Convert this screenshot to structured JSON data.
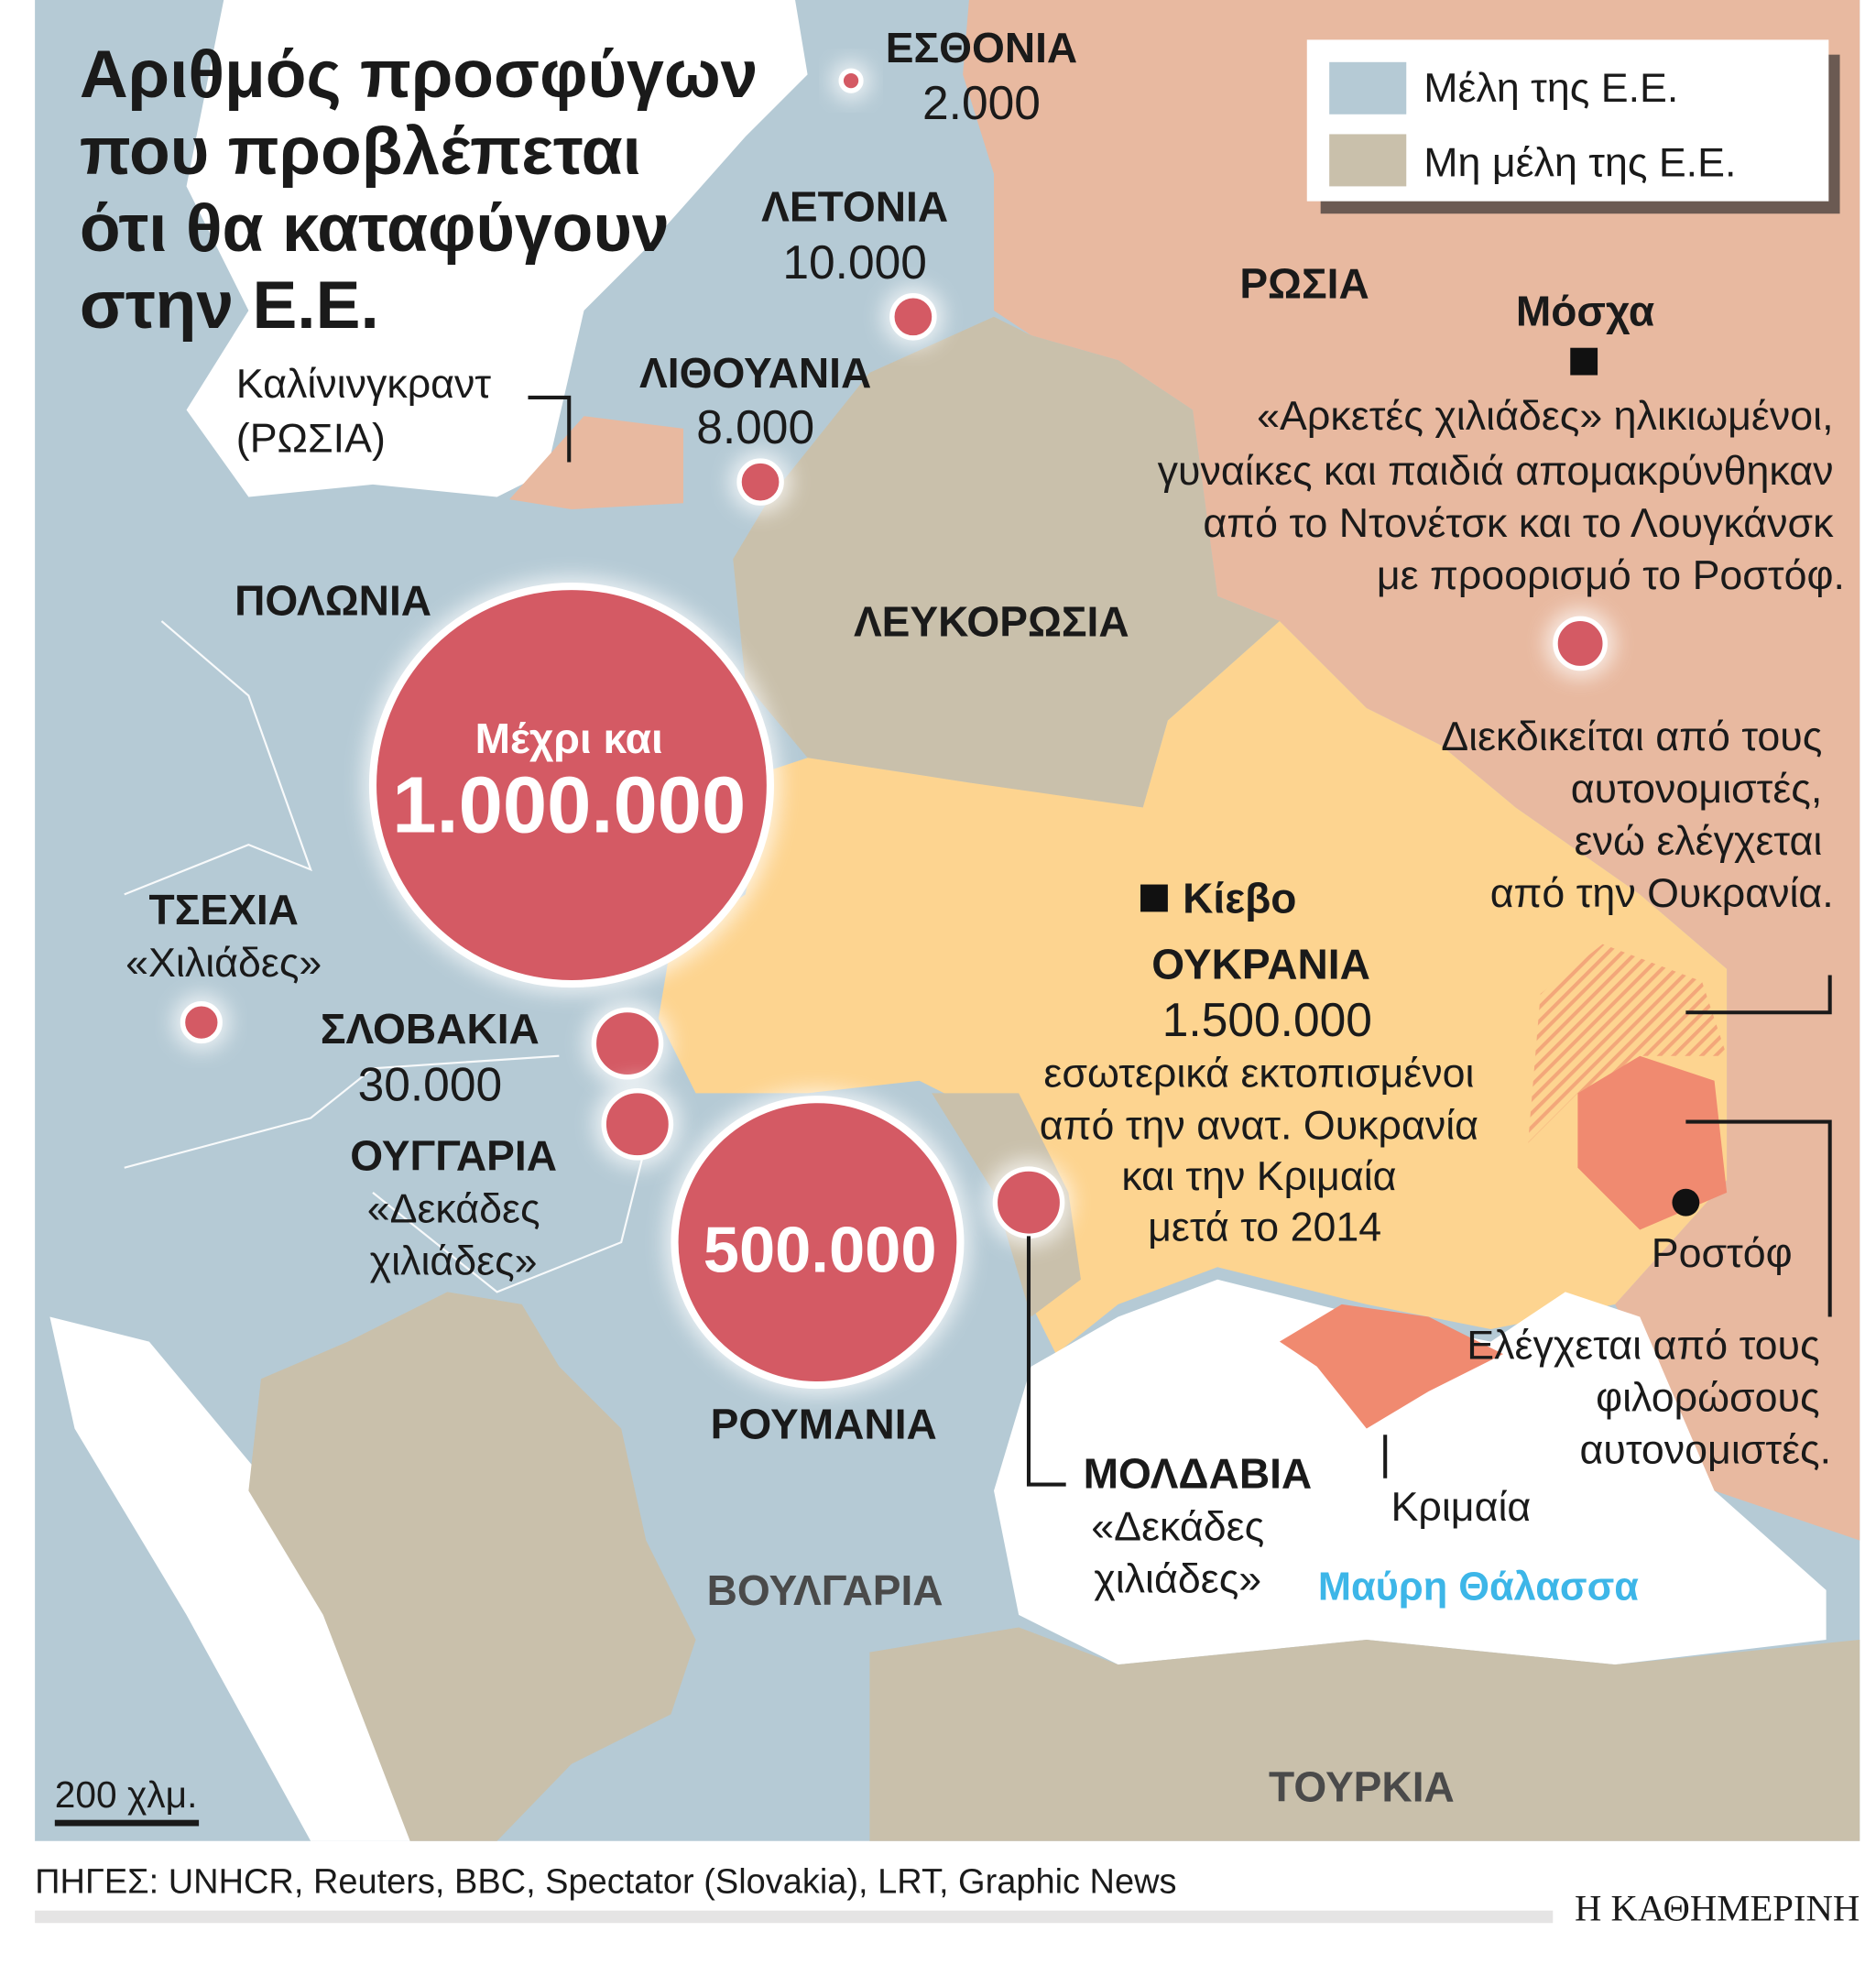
{
  "title": [
    "Αριθμός προσφύγων",
    "που προβλέπεται",
    "ότι θα καταφύγουν",
    "στην Ε.Ε."
  ],
  "legend": {
    "eu": "Μέλη της Ε.Ε.",
    "non_eu": "Μη μέλη της Ε.Ε."
  },
  "colors": {
    "eu": "#b5cad5",
    "non_eu": "#c9c0ab",
    "russia": "#e8b9a0",
    "ukraine": "#fdd490",
    "circle": "#d45a64",
    "contested": "#f08a70",
    "sea_label": "#3db6e8"
  },
  "countries": {
    "estonia": {
      "name": "ΕΣΘΟΝΙΑ",
      "value": "2.000"
    },
    "latvia": {
      "name": "ΛΕΤΟΝΙΑ",
      "value": "10.000"
    },
    "lithuania": {
      "name": "ΛΙΘΟΥΑΝΙΑ",
      "value": "8.000"
    },
    "kaliningrad": [
      "Καλίνινγκραντ",
      "(ΡΩΣΙΑ)"
    ],
    "poland": {
      "name": "ΠΟΛΩΝΙΑ",
      "prefix": "Μέχρι και",
      "value": "1.000.000"
    },
    "belarus": "ΛΕΥΚΟΡΩΣΙΑ",
    "russia": "ΡΩΣΙΑ",
    "moscow": "Μόσχα",
    "russia_note": [
      "«Αρκετές χιλιάδες» ηλικιωμένοι,",
      "γυναίκες και παιδιά απομακρύνθηκαν",
      "από το Ντονέτσκ και το Λουγκάνσκ",
      "με προορισμό το Ροστόφ."
    ],
    "czech": {
      "name": "ΤΣΕΧΙΑ",
      "value": "«Χιλιάδες»"
    },
    "slovakia": {
      "name": "ΣΛΟΒΑΚΙΑ",
      "value": "30.000"
    },
    "hungary": {
      "name": "ΟΥΓΓΑΡΙΑ",
      "value": [
        "«Δεκάδες",
        "χιλιάδες»"
      ]
    },
    "romania": {
      "name": "ΡΟΥΜΑΝΙΑ",
      "value": "500.000"
    },
    "moldova": {
      "name": "ΜΟΛΔΑΒΙΑ",
      "value": [
        "«Δεκάδες",
        "χιλιάδες»"
      ]
    },
    "bulgaria": "ΒΟΥΛΓΑΡΙΑ",
    "turkey": "ΤΟΥΡΚΙΑ",
    "kyiv": "Κίεβο",
    "ukraine": {
      "name": "ΟΥΚΡΑΝΙΑ",
      "value": "1.500.000",
      "note": [
        "εσωτερικά εκτοπισμένοι",
        "από την ανατ. Ουκρανία",
        "και την Κριμαία",
        "μετά το 2014"
      ]
    },
    "contested_note": [
      "Διεκδικείται από τους",
      "αυτονομιστές,",
      "ενώ ελέγχεται",
      "από την Ουκρανία."
    ],
    "controlled_note": [
      "Ελέγχεται από τους",
      "φιλορώσους",
      "αυτονομιστές."
    ],
    "rostov": "Ροστόφ",
    "crimea": "Κριμαία",
    "black_sea": "Μαύρη Θάλασσα"
  },
  "scale": "200 χλμ.",
  "sources": "ΠΗΓΕΣ: UNHCR, Reuters, BBC, Spectator (Slovakia), LRT, Graphic News",
  "publisher": "Η ΚΑΘΗΜΕΡΙΝΗ"
}
